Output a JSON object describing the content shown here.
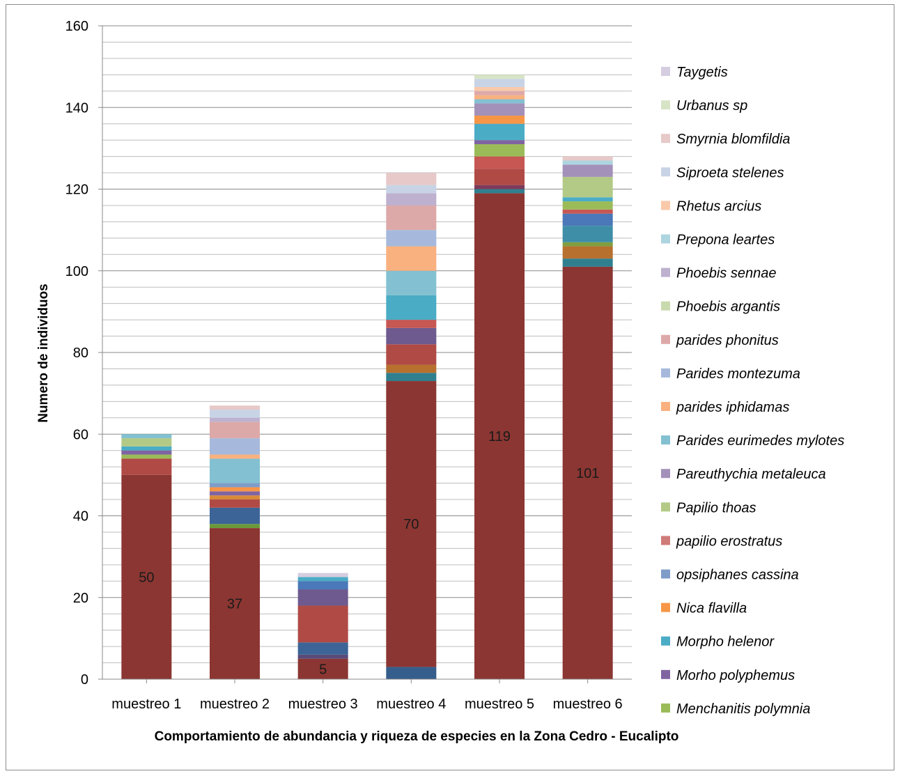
{
  "chart_data": {
    "type": "bar",
    "stacked": true,
    "title": "",
    "xlabel": "Comportamiento  de abundancia y riqueza de especies en la Zona Cedro - Eucalipto",
    "ylabel": "Numero de individuos",
    "ylim": [
      0,
      160
    ],
    "yticks": [
      "0",
      "20",
      "40",
      "60",
      "80",
      "100",
      "120",
      "140",
      "160"
    ],
    "grid": true,
    "legend_position": "right",
    "categories": [
      "muestreo 1",
      "muestreo 2",
      "muestreo 3",
      "muestreo 4",
      "muestreo 5",
      "muestreo 6"
    ],
    "series": [
      {
        "key": "s1",
        "color": "#365E8D",
        "values": [
          0,
          0,
          0,
          3,
          0,
          0
        ]
      },
      {
        "key": "s2",
        "color": "#8B3632",
        "values": [
          50,
          37,
          5,
          70,
          119,
          101
        ]
      },
      {
        "key": "s3",
        "color": "#6A9A3A",
        "values": [
          0,
          1,
          0,
          0,
          0,
          0
        ]
      },
      {
        "key": "s4",
        "color": "#5A4A78",
        "values": [
          0,
          0,
          1,
          0,
          0,
          0
        ]
      },
      {
        "key": "s5",
        "color": "#2F7F8F",
        "values": [
          0,
          0,
          0,
          2,
          1,
          2
        ]
      },
      {
        "key": "s6",
        "color": "#3C6496",
        "values": [
          0,
          4,
          3,
          0,
          0,
          0
        ]
      },
      {
        "key": "s7",
        "color": "#B7702E",
        "values": [
          0,
          0,
          0,
          2,
          0,
          3
        ]
      },
      {
        "key": "s8",
        "color": "#7E3A5A",
        "values": [
          0,
          0,
          0,
          0,
          1,
          0
        ]
      },
      {
        "key": "s9",
        "color": "#B04A45",
        "values": [
          4,
          2,
          9,
          5,
          4,
          0
        ]
      },
      {
        "key": "s10",
        "color": "#7F9E3E",
        "values": [
          0,
          0,
          0,
          0,
          0,
          1
        ]
      },
      {
        "key": "s11",
        "color": "#6E5A8E",
        "values": [
          0,
          0,
          4,
          4,
          0,
          0
        ]
      },
      {
        "key": "s12",
        "color": "#3E8EA8",
        "values": [
          0,
          0,
          0,
          0,
          0,
          4
        ]
      },
      {
        "key": "s13",
        "color": "#D88A3A",
        "values": [
          0,
          1,
          0,
          0,
          0,
          0
        ]
      },
      {
        "key": "s14",
        "color": "#4A78B8",
        "values": [
          0,
          0,
          2,
          0,
          0,
          3
        ]
      },
      {
        "key": "s15",
        "color": "#C65752",
        "values": [
          0,
          0,
          0,
          2,
          3,
          1
        ]
      },
      {
        "key": "Menchanitis polymnia",
        "name": "Menchanitis polymnia",
        "color": "#9BBB59",
        "values": [
          1,
          0,
          0,
          0,
          3,
          2
        ]
      },
      {
        "key": "Morho polyphemus",
        "name": "Morho polyphemus",
        "color": "#8064A2",
        "values": [
          1,
          1,
          0,
          0,
          1,
          0
        ]
      },
      {
        "key": "Morpho helenor",
        "name": "Morpho helenor",
        "color": "#4BACC6",
        "values": [
          1,
          0,
          1,
          6,
          4,
          1
        ]
      },
      {
        "key": "Nica flavilla",
        "name": "Nica flavilla",
        "color": "#F79646",
        "values": [
          0,
          1,
          0,
          0,
          2,
          0
        ]
      },
      {
        "key": "opsiphanes cassina",
        "name": "opsiphanes cassina",
        "color": "#7F9CC9",
        "values": [
          0,
          1,
          0,
          0,
          0,
          0
        ]
      },
      {
        "key": "papilio erostratus",
        "name": "papilio erostratus",
        "color": "#CF7B79",
        "values": [
          0,
          0,
          0,
          0,
          0,
          0
        ]
      },
      {
        "key": "Papilio thoas",
        "name": "Papilio thoas",
        "color": "#B2CA86",
        "values": [
          2,
          0,
          0,
          0,
          0,
          5
        ]
      },
      {
        "key": "Pareuthychia metaleuca",
        "name": "Pareuthychia metaleuca",
        "color": "#A391BA",
        "values": [
          0,
          0,
          0,
          0,
          3,
          3
        ]
      },
      {
        "key": "Parides eurimedes mylotes",
        "name": "Parides eurimedes mylotes",
        "color": "#83C0D2",
        "values": [
          1,
          6,
          0,
          6,
          1,
          0
        ]
      },
      {
        "key": "parides iphidamas",
        "name": "parides iphidamas",
        "color": "#F9B17F",
        "values": [
          0,
          1,
          0,
          6,
          1,
          0
        ]
      },
      {
        "key": "Parides montezuma",
        "name": "Parides montezuma",
        "color": "#A6B9DC",
        "values": [
          0,
          4,
          0,
          4,
          0,
          0
        ]
      },
      {
        "key": "parides phonitus",
        "name": "parides phonitus",
        "color": "#DDA9A8",
        "values": [
          0,
          4,
          0,
          6,
          1,
          0
        ]
      },
      {
        "key": "Phoebis argantis",
        "name": "Phoebis argantis",
        "color": "#C9DAAE",
        "values": [
          0,
          0,
          0,
          0,
          0,
          0
        ]
      },
      {
        "key": "Phoebis sennae",
        "name": "Phoebis sennae",
        "color": "#BDB1CF",
        "values": [
          0,
          1,
          0,
          3,
          0,
          0
        ]
      },
      {
        "key": "Prepona leartes",
        "name": "Prepona leartes",
        "color": "#ADD5E0",
        "values": [
          0,
          0,
          0,
          0,
          0,
          1
        ]
      },
      {
        "key": "Rhetus  arcius",
        "name": "Rhetus  arcius",
        "color": "#F9C9AA",
        "values": [
          0,
          0,
          0,
          0,
          1,
          0
        ]
      },
      {
        "key": "Siproeta stelenes",
        "name": "Siproeta stelenes",
        "color": "#C9D3E6",
        "values": [
          0,
          2,
          0,
          2,
          2,
          0
        ]
      },
      {
        "key": "Smyrnia blomfildia",
        "name": "Smyrnia blomfildia",
        "color": "#E6C9C8",
        "values": [
          0,
          1,
          0,
          3,
          0,
          1
        ]
      },
      {
        "key": "Urbanus sp",
        "name": "Urbanus sp",
        "color": "#D7E4C6",
        "values": [
          0,
          0,
          0,
          0,
          1,
          0
        ]
      },
      {
        "key": "Taygetis",
        "name": "Taygetis",
        "color": "#D5CDE0",
        "values": [
          0,
          0,
          1,
          0,
          0,
          0
        ]
      }
    ],
    "data_labels": [
      {
        "category": "muestreo 1",
        "text": "50",
        "value": 50
      },
      {
        "category": "muestreo 2",
        "text": "37",
        "value": 37
      },
      {
        "category": "muestreo 3",
        "text": "5",
        "value": 5
      },
      {
        "category": "muestreo 4",
        "text": "70",
        "value": 70
      },
      {
        "category": "muestreo 5",
        "text": "119",
        "value": 119
      },
      {
        "category": "muestreo 6",
        "text": "101",
        "value": 101
      }
    ],
    "legend": [
      {
        "name": "Taygetis",
        "color": "#D5CDE0"
      },
      {
        "name": "Urbanus sp",
        "color": "#D7E4C6"
      },
      {
        "name": "Smyrnia blomfildia",
        "color": "#E6C9C8"
      },
      {
        "name": "Siproeta stelenes",
        "color": "#C9D3E6"
      },
      {
        "name": "Rhetus  arcius",
        "color": "#F9C9AA"
      },
      {
        "name": "Prepona leartes",
        "color": "#ADD5E0"
      },
      {
        "name": "Phoebis sennae",
        "color": "#BDB1CF"
      },
      {
        "name": "Phoebis argantis",
        "color": "#C9DAAE"
      },
      {
        "name": "parides phonitus",
        "color": "#DDA9A8"
      },
      {
        "name": "Parides montezuma",
        "color": "#A6B9DC"
      },
      {
        "name": "parides iphidamas",
        "color": "#F9B17F"
      },
      {
        "name": "Parides eurimedes mylotes",
        "color": "#83C0D2"
      },
      {
        "name": "Pareuthychia metaleuca",
        "color": "#A391BA"
      },
      {
        "name": "Papilio thoas",
        "color": "#B2CA86"
      },
      {
        "name": "papilio erostratus",
        "color": "#CF7B79"
      },
      {
        "name": "opsiphanes cassina",
        "color": "#7F9CC9"
      },
      {
        "name": "Nica flavilla",
        "color": "#F79646"
      },
      {
        "name": "Morpho helenor",
        "color": "#4BACC6"
      },
      {
        "name": "Morho polyphemus",
        "color": "#8064A2"
      },
      {
        "name": "Menchanitis polymnia",
        "color": "#9BBB59"
      }
    ]
  }
}
